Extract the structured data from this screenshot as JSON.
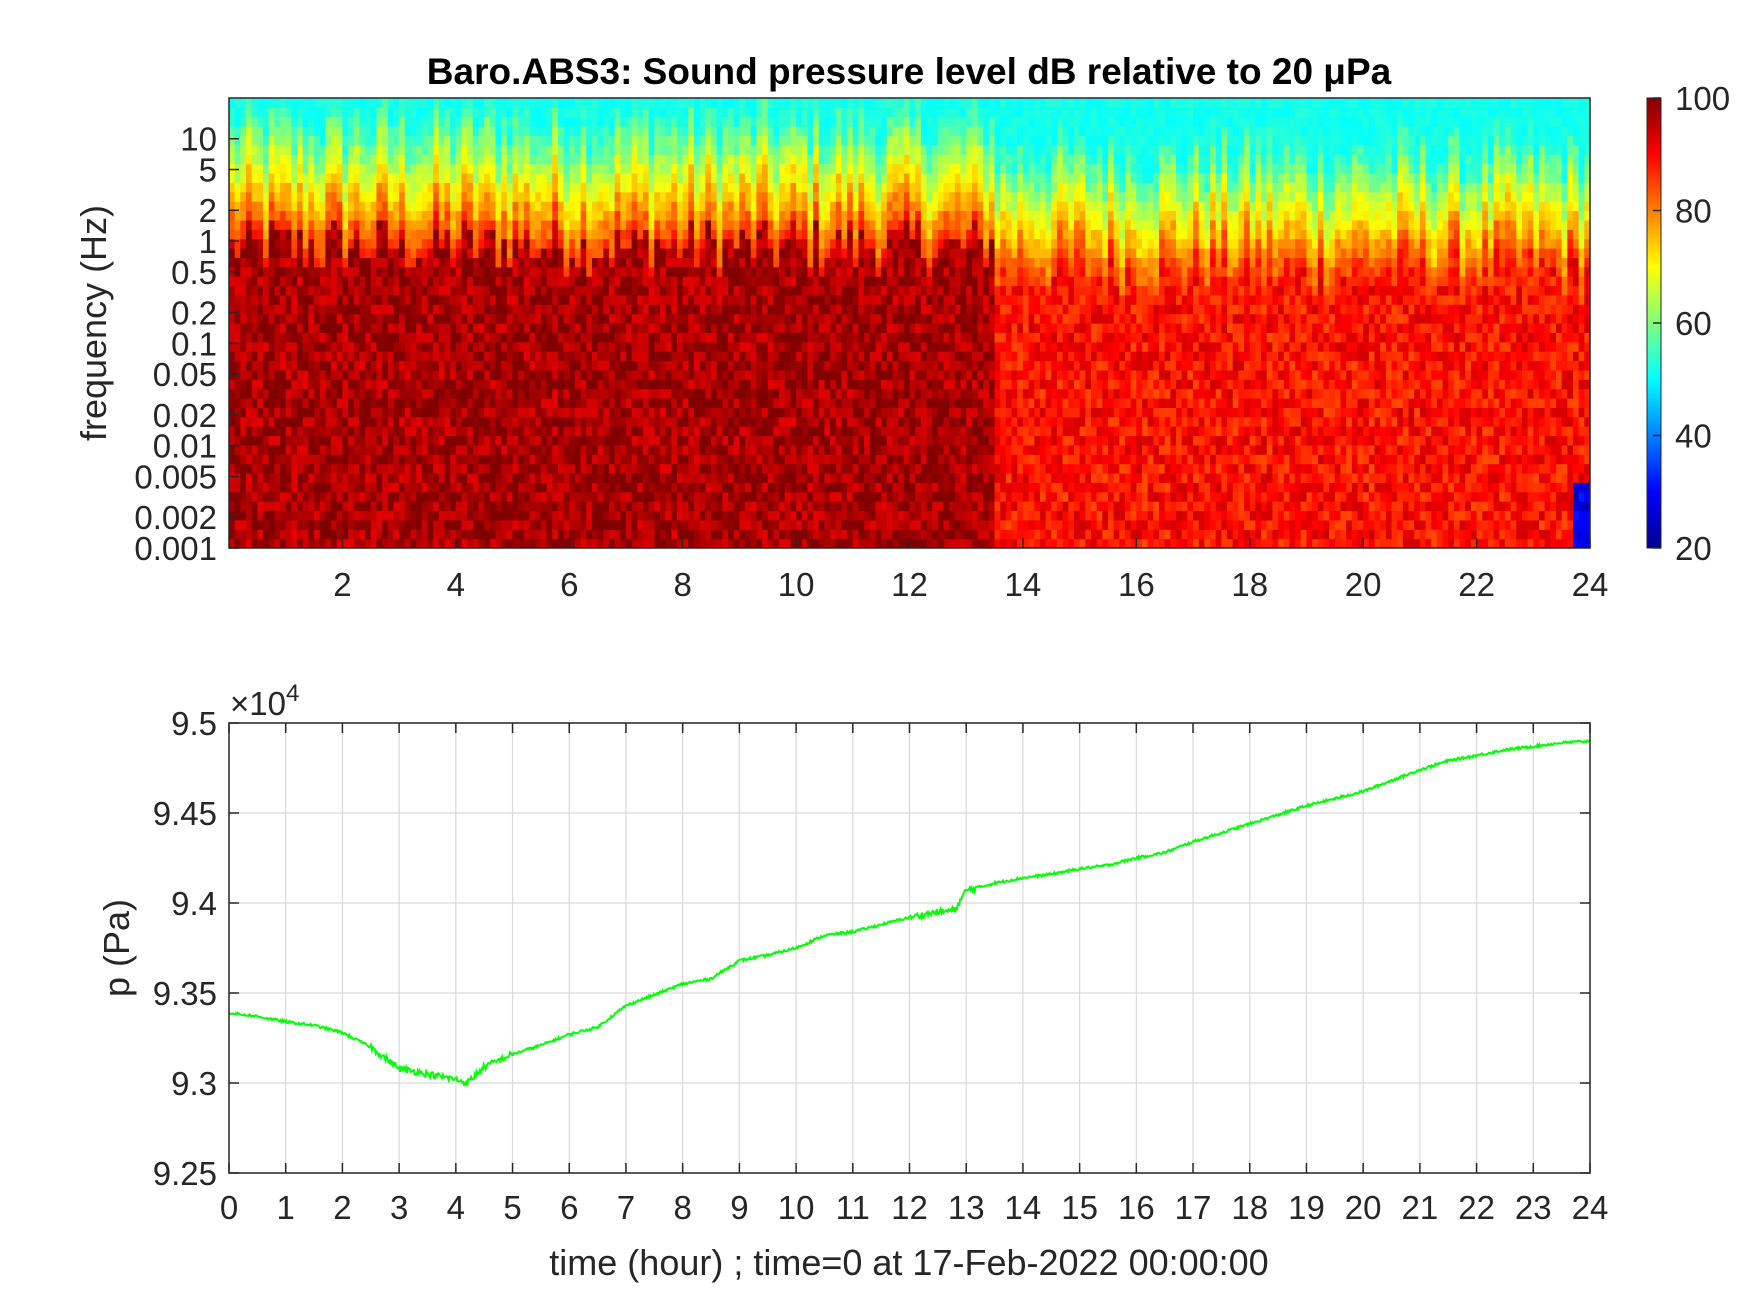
{
  "chart_data": [
    {
      "type": "heatmap",
      "title": "Baro.ABS3: Sound pressure level dB relative to 20 μPa",
      "xlabel": "",
      "ylabel": "frequency (Hz)",
      "x_range": [
        0,
        24
      ],
      "x_ticks": [
        "2",
        "4",
        "6",
        "8",
        "10",
        "12",
        "14",
        "16",
        "18",
        "20",
        "22",
        "24"
      ],
      "y_scale": "log",
      "y_range": [
        0.001,
        25
      ],
      "y_ticks": [
        "0.001",
        "0.002",
        "0.005",
        "0.01",
        "0.02",
        "0.05",
        "0.1",
        "0.2",
        "0.5",
        "1",
        "2",
        "5",
        "10"
      ],
      "colorbar": {
        "colormap": "jet",
        "range": [
          20,
          100
        ],
        "ticks": [
          "20",
          "40",
          "60",
          "80",
          "100"
        ]
      },
      "grid": false,
      "description_levels": {
        "low_freq_dB": 95,
        "high_freq_dB": 50,
        "quieter_hours": [
          13.5,
          24
        ]
      }
    },
    {
      "type": "line",
      "title": "",
      "xlabel": "time (hour) ; time=0 at 17-Feb-2022 00:00:00",
      "ylabel": "p (Pa)",
      "xlim": [
        0,
        24
      ],
      "ylim": [
        92500,
        95000
      ],
      "y_exponent_label": "×10",
      "y_exponent_power": "4",
      "x_ticks": [
        "0",
        "1",
        "2",
        "3",
        "4",
        "5",
        "6",
        "7",
        "8",
        "9",
        "10",
        "11",
        "12",
        "13",
        "14",
        "15",
        "16",
        "17",
        "18",
        "19",
        "20",
        "21",
        "22",
        "23",
        "24"
      ],
      "y_ticks": [
        "9.25",
        "9.3",
        "9.35",
        "9.4",
        "9.45",
        "9.5"
      ],
      "grid": true,
      "series": [
        {
          "color": "#00ff00",
          "x": [
            0,
            0.5,
            1,
            1.5,
            2,
            2.5,
            3,
            3.5,
            4,
            4.2,
            4.5,
            5,
            5.5,
            6,
            6.5,
            7,
            7.5,
            8,
            8.5,
            9,
            9.5,
            10,
            10.5,
            11,
            11.5,
            12,
            12.5,
            12.8,
            13,
            13.5,
            14,
            14.5,
            15,
            15.5,
            16,
            16.5,
            17,
            17.5,
            18,
            18.5,
            19,
            19.5,
            20,
            20.5,
            21,
            21.5,
            22,
            22.5,
            23,
            23.5,
            24
          ],
          "values": [
            93390,
            93370,
            93340,
            93320,
            93280,
            93200,
            93080,
            93050,
            93020,
            93000,
            93090,
            93160,
            93210,
            93270,
            93310,
            93430,
            93490,
            93550,
            93580,
            93680,
            93710,
            93750,
            93820,
            93840,
            93880,
            93920,
            93950,
            93960,
            94070,
            94110,
            94140,
            94160,
            94190,
            94210,
            94250,
            94280,
            94340,
            94390,
            94440,
            94490,
            94540,
            94580,
            94620,
            94680,
            94740,
            94790,
            94820,
            94850,
            94870,
            94890,
            94900
          ]
        }
      ]
    }
  ]
}
